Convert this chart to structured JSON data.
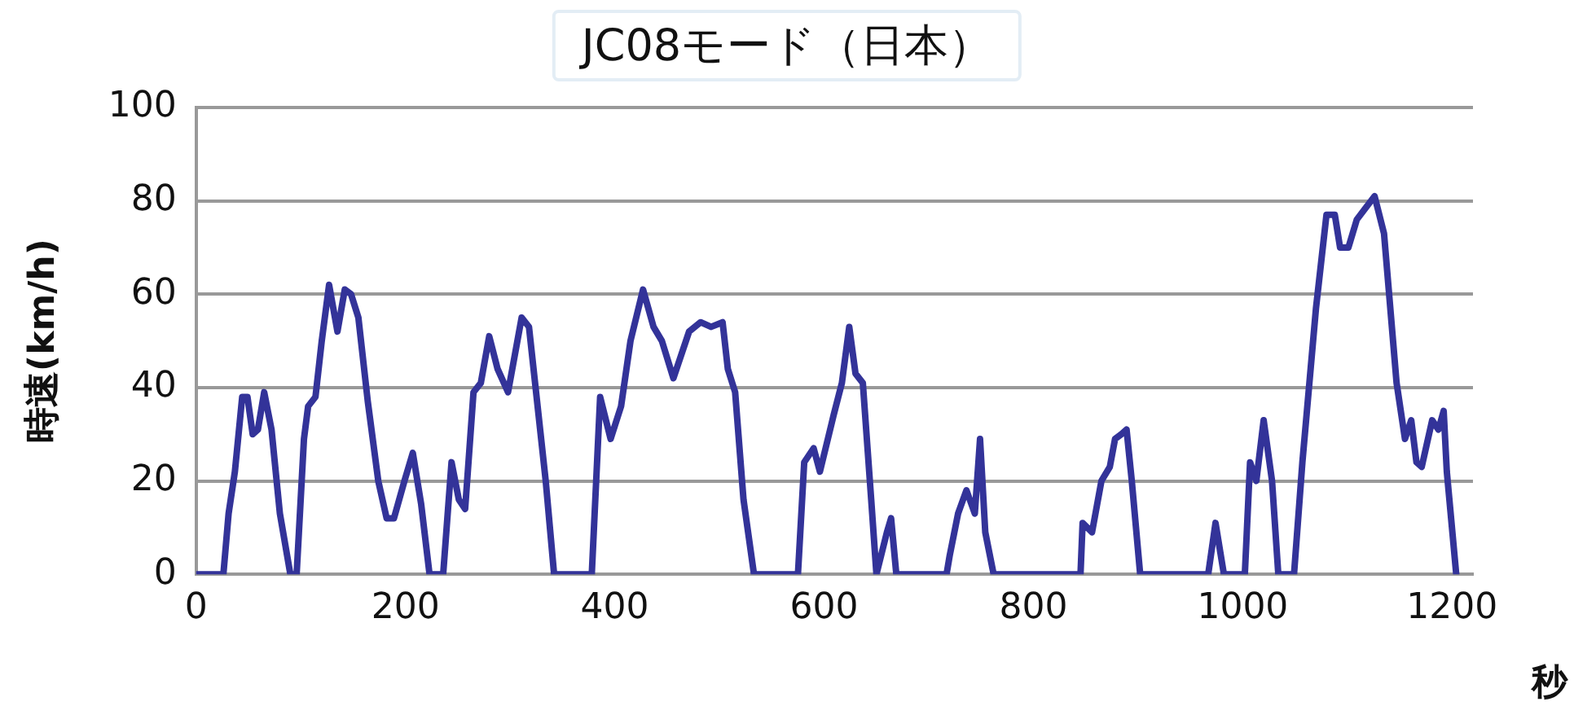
{
  "chart_data": {
    "type": "line",
    "title": "JC08モード（日本）",
    "xlabel": "秒",
    "ylabel": "時速(km/h)",
    "xlim": [
      0,
      1220
    ],
    "xticks": [
      0,
      200,
      400,
      600,
      800,
      1000,
      1200
    ],
    "ylim": [
      0,
      100
    ],
    "yticks": [
      0,
      20,
      40,
      60,
      80,
      100
    ],
    "grid": "y",
    "legend": false,
    "marker": "none",
    "line_style": "solid",
    "series": [
      {
        "color": "#333399",
        "x": [
          0,
          26,
          31,
          37,
          44,
          49,
          54,
          59,
          65,
          72,
          80,
          90,
          96,
          103,
          107,
          114,
          120,
          127,
          135,
          142,
          148,
          155,
          164,
          174,
          182,
          189,
          199,
          207,
          215,
          223,
          236,
          244,
          251,
          257,
          265,
          272,
          280,
          288,
          298,
          311,
          318,
          334,
          342,
          378,
          386,
          396,
          406,
          415,
          427,
          437,
          445,
          456,
          471,
          482,
          492,
          503,
          508,
          515,
          523,
          533,
          575,
          581,
          590,
          596,
          609,
          617,
          624,
          630,
          637,
          645,
          650,
          660,
          664,
          669,
          717,
          720,
          728,
          736,
          744,
          749,
          754,
          762,
          845,
          847,
          856,
          865,
          873,
          878,
          884,
          889,
          894,
          902,
          967,
          974,
          982,
          1002,
          1007,
          1013,
          1020,
          1028,
          1034,
          1049,
          1057,
          1070,
          1080,
          1088,
          1093,
          1101,
          1109,
          1126,
          1135,
          1147,
          1155,
          1161,
          1166,
          1171,
          1181,
          1187,
          1192,
          1195,
          1204
        ],
        "values": [
          0,
          0,
          13,
          22,
          38,
          38,
          30,
          31,
          39,
          31,
          13,
          0,
          0,
          29,
          36,
          38,
          50,
          62,
          52,
          61,
          60,
          55,
          37,
          20,
          12,
          12,
          20,
          26,
          15,
          0,
          0,
          24,
          16,
          14,
          39,
          41,
          51,
          44,
          39,
          55,
          53,
          20,
          0,
          0,
          38,
          29,
          36,
          50,
          61,
          53,
          50,
          42,
          52,
          54,
          53,
          54,
          44,
          39,
          16,
          0,
          0,
          24,
          27,
          22,
          34,
          41,
          53,
          43,
          41,
          16,
          0,
          9,
          12,
          0,
          0,
          4,
          13,
          18,
          13,
          29,
          9,
          0,
          0,
          11,
          9,
          20,
          23,
          29,
          30,
          31,
          20,
          0,
          0,
          11,
          0,
          0,
          24,
          20,
          33,
          20,
          0,
          0,
          24,
          57,
          77,
          77,
          70,
          70,
          76,
          81,
          73,
          41,
          29,
          33,
          24,
          23,
          33,
          31,
          35,
          22,
          0
        ]
      }
    ]
  }
}
